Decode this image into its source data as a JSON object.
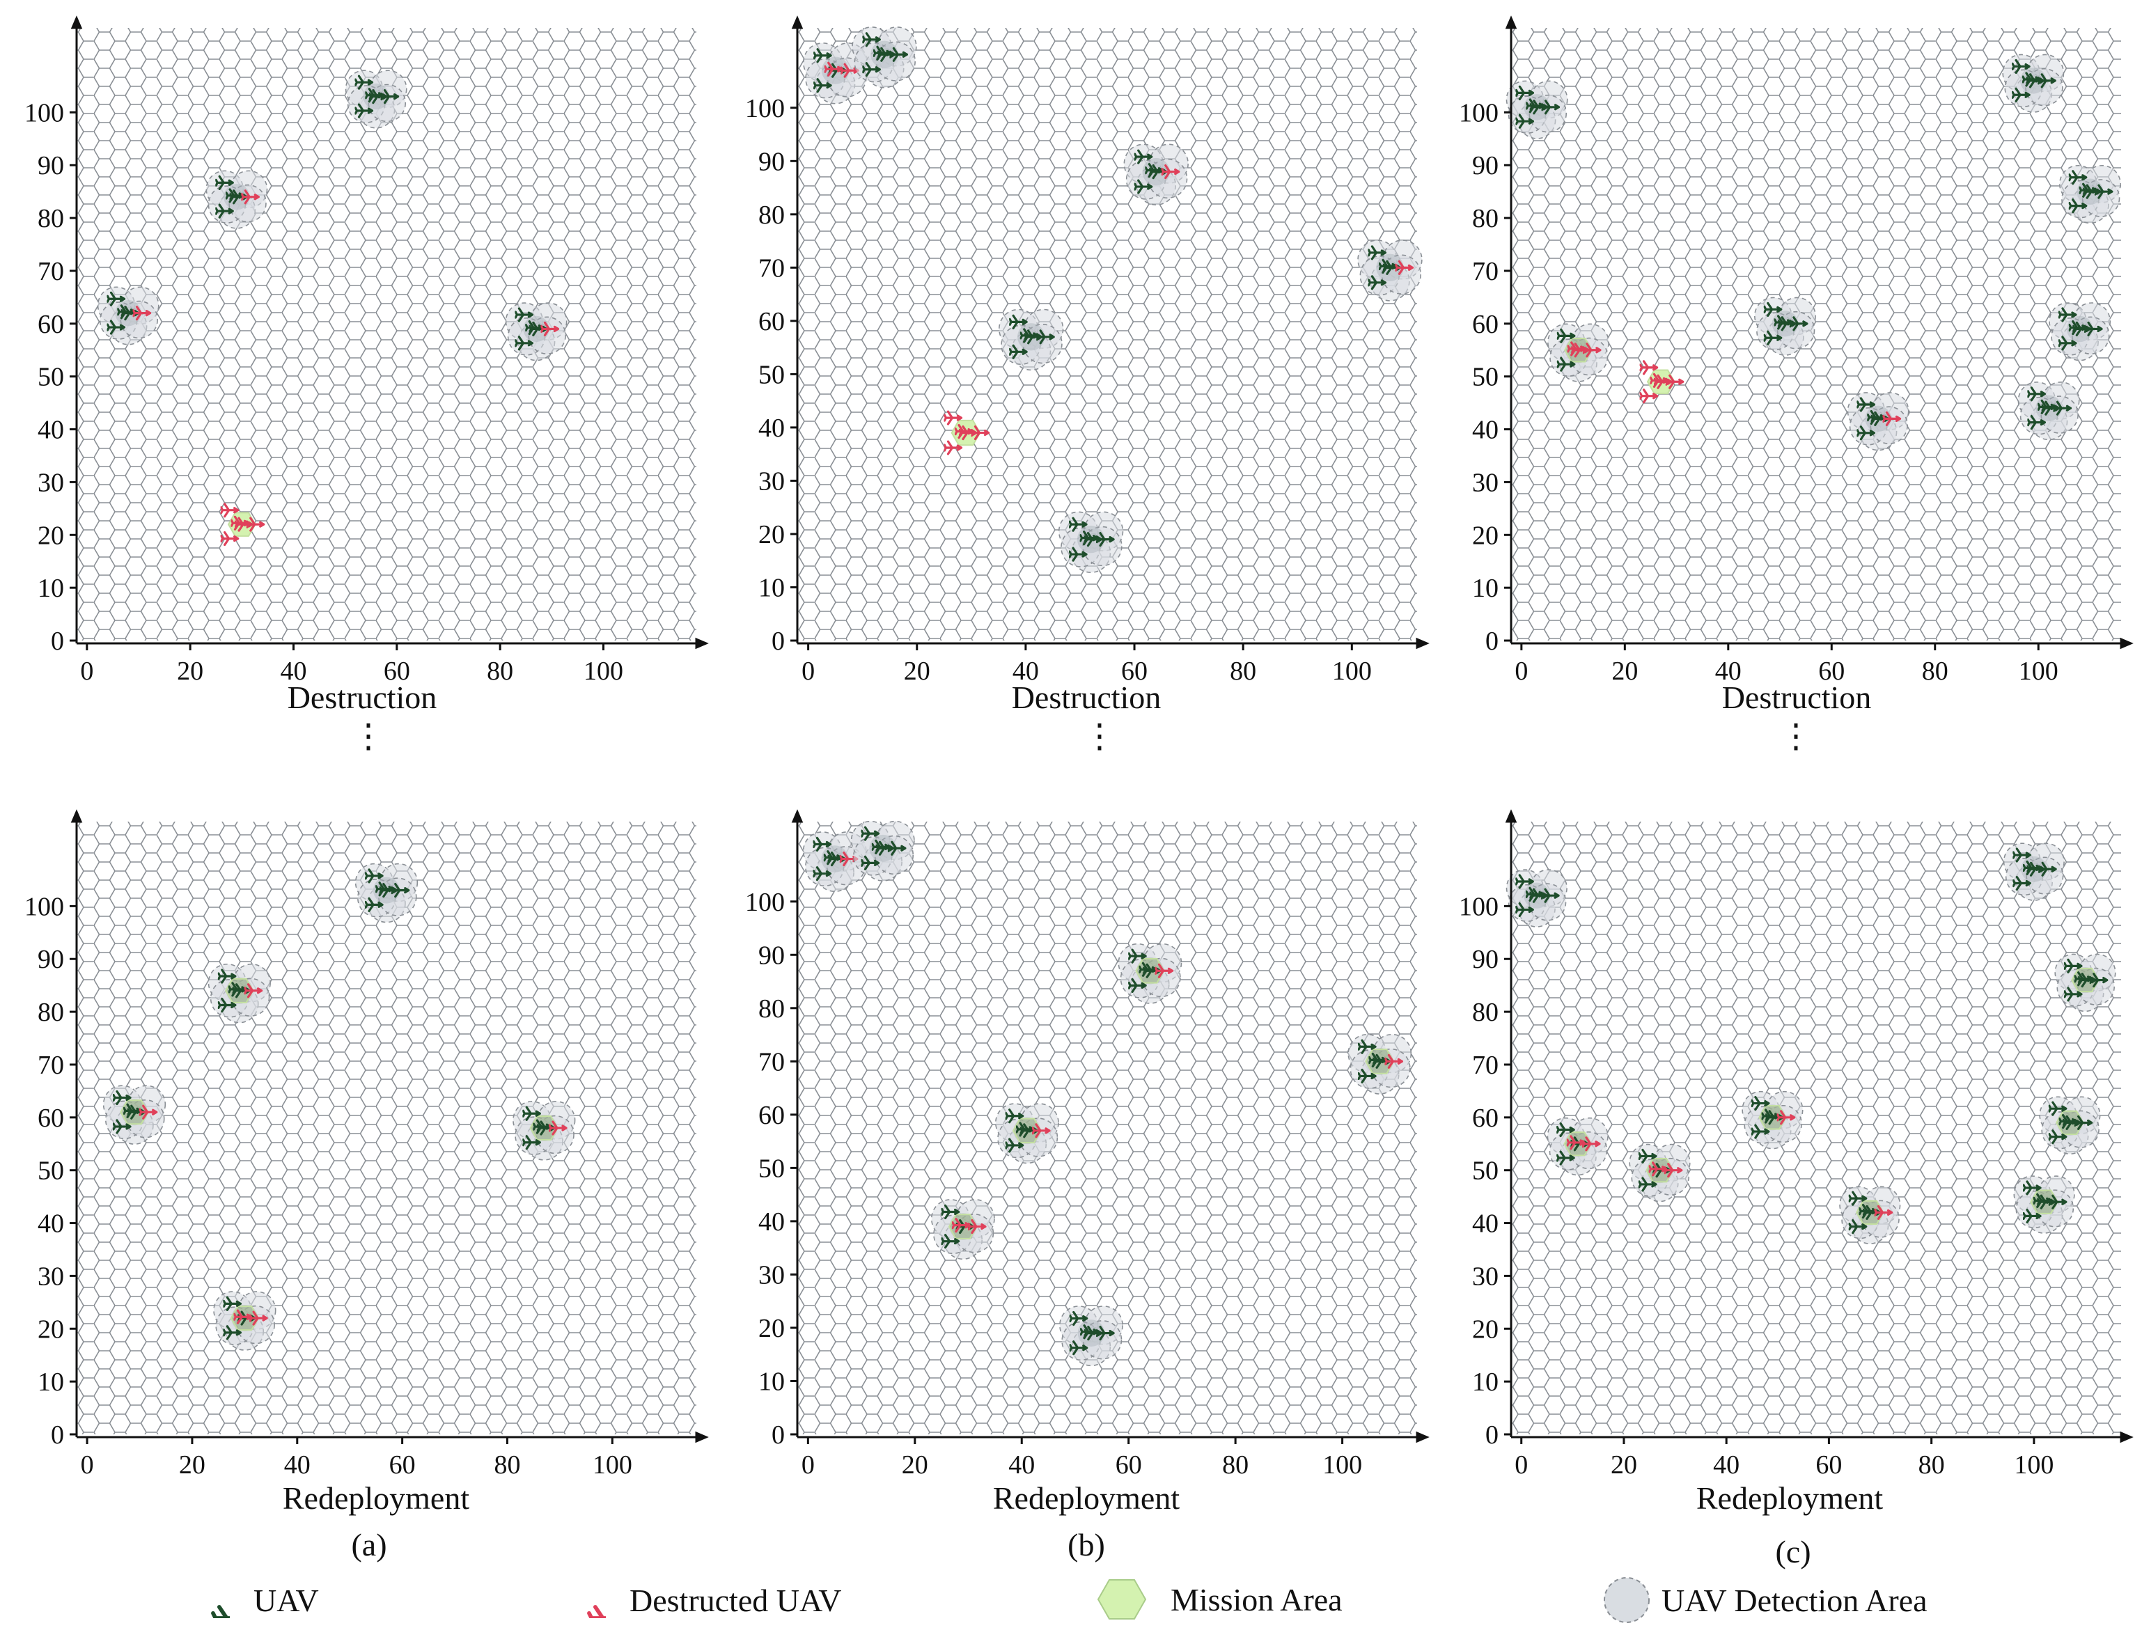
{
  "figure": {
    "captions": [
      "Destruction",
      "Redeployment"
    ],
    "column_labels": [
      "(a)",
      "(b)",
      "(c)"
    ],
    "ellipsis": "⋮"
  },
  "legend": [
    {
      "name": "uav",
      "label": "UAV",
      "icon": "uav-plane-icon",
      "color": "#1e4d2b"
    },
    {
      "name": "destructed-uav",
      "label": "Destructed UAV",
      "icon": "destructed-uav-plane-icon",
      "color": "#e0405a"
    },
    {
      "name": "mission-area",
      "label": "Mission Area",
      "icon": "hexagon-icon",
      "color": "#d4f2b0"
    },
    {
      "name": "detection-area",
      "label": "UAV Detection Area",
      "icon": "circle-icon",
      "color": "#d9dde2"
    }
  ],
  "chart_data": [
    {
      "type": "scatter",
      "panel": "a-destruction",
      "title": "Destruction",
      "xlabel": "",
      "ylabel": "",
      "xlim": [
        -2,
        118
      ],
      "ylim": [
        0,
        116
      ],
      "xticks": [
        "0",
        "20",
        "40",
        "60",
        "80",
        "100"
      ],
      "yticks": [
        "0",
        "10",
        "20",
        "30",
        "40",
        "50",
        "60",
        "70",
        "80",
        "90",
        "100"
      ],
      "clusters": [
        {
          "x": 56,
          "y": 103,
          "uav": 5,
          "destroyed": 0,
          "mission": false,
          "detection": true
        },
        {
          "x": 29,
          "y": 84,
          "uav": 4,
          "destroyed": 1,
          "mission": false,
          "detection": true
        },
        {
          "x": 8,
          "y": 62,
          "uav": 4,
          "destroyed": 1,
          "mission": false,
          "detection": true
        },
        {
          "x": 87,
          "y": 59,
          "uav": 4,
          "destroyed": 1,
          "mission": false,
          "detection": true
        },
        {
          "x": 30,
          "y": 22,
          "uav": 0,
          "destroyed": 5,
          "mission": true,
          "detection": false
        }
      ]
    },
    {
      "type": "scatter",
      "panel": "b-destruction",
      "title": "Destruction",
      "xlabel": "",
      "ylabel": "",
      "xlim": [
        -2,
        112
      ],
      "ylim": [
        0,
        115
      ],
      "xticks": [
        "0",
        "20",
        "40",
        "60",
        "80",
        "100"
      ],
      "yticks": [
        "0",
        "10",
        "20",
        "30",
        "40",
        "50",
        "60",
        "70",
        "80",
        "90",
        "100"
      ],
      "clusters": [
        {
          "x": 5,
          "y": 107,
          "uav": 3,
          "destroyed": 2,
          "mission": false,
          "detection": true
        },
        {
          "x": 14,
          "y": 110,
          "uav": 5,
          "destroyed": 0,
          "mission": false,
          "detection": true
        },
        {
          "x": 64,
          "y": 88,
          "uav": 4,
          "destroyed": 1,
          "mission": false,
          "detection": true
        },
        {
          "x": 107,
          "y": 70,
          "uav": 4,
          "destroyed": 1,
          "mission": false,
          "detection": true
        },
        {
          "x": 41,
          "y": 57,
          "uav": 5,
          "destroyed": 0,
          "mission": false,
          "detection": true
        },
        {
          "x": 29,
          "y": 39,
          "uav": 0,
          "destroyed": 5,
          "mission": true,
          "detection": false
        },
        {
          "x": 52,
          "y": 19,
          "uav": 5,
          "destroyed": 0,
          "mission": false,
          "detection": true
        }
      ]
    },
    {
      "type": "scatter",
      "panel": "c-destruction",
      "title": "Destruction",
      "xlabel": "",
      "ylabel": "",
      "xlim": [
        -2,
        116
      ],
      "ylim": [
        0,
        116
      ],
      "xticks": [
        "0",
        "20",
        "40",
        "60",
        "80",
        "100"
      ],
      "yticks": [
        "0",
        "10",
        "20",
        "30",
        "40",
        "50",
        "60",
        "70",
        "80",
        "90",
        "100"
      ],
      "clusters": [
        {
          "x": 3,
          "y": 101,
          "uav": 5,
          "destroyed": 0,
          "mission": false,
          "detection": true
        },
        {
          "x": 99,
          "y": 106,
          "uav": 5,
          "destroyed": 0,
          "mission": false,
          "detection": true
        },
        {
          "x": 110,
          "y": 85,
          "uav": 5,
          "destroyed": 0,
          "mission": false,
          "detection": true
        },
        {
          "x": 51,
          "y": 60,
          "uav": 5,
          "destroyed": 0,
          "mission": false,
          "detection": true
        },
        {
          "x": 108,
          "y": 59,
          "uav": 5,
          "destroyed": 0,
          "mission": false,
          "detection": true
        },
        {
          "x": 11,
          "y": 55,
          "uav": 2,
          "destroyed": 3,
          "mission": true,
          "detection": true
        },
        {
          "x": 27,
          "y": 49,
          "uav": 0,
          "destroyed": 5,
          "mission": true,
          "detection": false
        },
        {
          "x": 69,
          "y": 42,
          "uav": 4,
          "destroyed": 1,
          "mission": false,
          "detection": true
        },
        {
          "x": 102,
          "y": 44,
          "uav": 5,
          "destroyed": 0,
          "mission": false,
          "detection": true
        }
      ]
    },
    {
      "type": "scatter",
      "panel": "a-redeployment",
      "title": "Redeployment",
      "xlabel": "",
      "ylabel": "",
      "xlim": [
        -2,
        116
      ],
      "ylim": [
        0,
        116
      ],
      "xticks": [
        "0",
        "20",
        "40",
        "60",
        "80",
        "100"
      ],
      "yticks": [
        "0",
        "10",
        "20",
        "30",
        "40",
        "50",
        "60",
        "70",
        "80",
        "90",
        "100"
      ],
      "clusters": [
        {
          "x": 57,
          "y": 103,
          "uav": 5,
          "destroyed": 0,
          "mission": false,
          "detection": true
        },
        {
          "x": 29,
          "y": 84,
          "uav": 4,
          "destroyed": 1,
          "mission": true,
          "detection": true
        },
        {
          "x": 9,
          "y": 61,
          "uav": 4,
          "destroyed": 1,
          "mission": true,
          "detection": true
        },
        {
          "x": 87,
          "y": 58,
          "uav": 4,
          "destroyed": 1,
          "mission": true,
          "detection": true
        },
        {
          "x": 30,
          "y": 22,
          "uav": 3,
          "destroyed": 2,
          "mission": true,
          "detection": true
        }
      ]
    },
    {
      "type": "scatter",
      "panel": "b-redeployment",
      "title": "Redeployment",
      "xlabel": "",
      "ylabel": "",
      "xlim": [
        -2,
        114
      ],
      "ylim": [
        0,
        115
      ],
      "xticks": [
        "0",
        "20",
        "40",
        "60",
        "80",
        "100"
      ],
      "yticks": [
        "0",
        "10",
        "20",
        "30",
        "40",
        "50",
        "60",
        "70",
        "80",
        "90",
        "100"
      ],
      "clusters": [
        {
          "x": 5,
          "y": 108,
          "uav": 4,
          "destroyed": 1,
          "mission": false,
          "detection": true
        },
        {
          "x": 14,
          "y": 110,
          "uav": 5,
          "destroyed": 0,
          "mission": false,
          "detection": true
        },
        {
          "x": 64,
          "y": 87,
          "uav": 4,
          "destroyed": 1,
          "mission": true,
          "detection": true
        },
        {
          "x": 107,
          "y": 70,
          "uav": 4,
          "destroyed": 1,
          "mission": true,
          "detection": true
        },
        {
          "x": 41,
          "y": 57,
          "uav": 4,
          "destroyed": 1,
          "mission": true,
          "detection": true
        },
        {
          "x": 29,
          "y": 39,
          "uav": 3,
          "destroyed": 2,
          "mission": true,
          "detection": true
        },
        {
          "x": 53,
          "y": 19,
          "uav": 5,
          "destroyed": 0,
          "mission": false,
          "detection": true
        }
      ]
    },
    {
      "type": "scatter",
      "panel": "c-redeployment",
      "title": "Redeployment",
      "xlabel": "",
      "ylabel": "",
      "xlim": [
        -2,
        117
      ],
      "ylim": [
        0,
        116
      ],
      "xticks": [
        "0",
        "20",
        "40",
        "60",
        "80",
        "100"
      ],
      "yticks": [
        "0",
        "10",
        "20",
        "30",
        "40",
        "50",
        "60",
        "70",
        "80",
        "90",
        "100"
      ],
      "clusters": [
        {
          "x": 3,
          "y": 102,
          "uav": 5,
          "destroyed": 0,
          "mission": false,
          "detection": true
        },
        {
          "x": 100,
          "y": 107,
          "uav": 5,
          "destroyed": 0,
          "mission": false,
          "detection": true
        },
        {
          "x": 110,
          "y": 86,
          "uav": 5,
          "destroyed": 0,
          "mission": true,
          "detection": true
        },
        {
          "x": 49,
          "y": 60,
          "uav": 4,
          "destroyed": 1,
          "mission": true,
          "detection": true
        },
        {
          "x": 107,
          "y": 59,
          "uav": 5,
          "destroyed": 0,
          "mission": true,
          "detection": true
        },
        {
          "x": 11,
          "y": 55,
          "uav": 3,
          "destroyed": 2,
          "mission": true,
          "detection": true
        },
        {
          "x": 27,
          "y": 50,
          "uav": 3,
          "destroyed": 2,
          "mission": true,
          "detection": true
        },
        {
          "x": 68,
          "y": 42,
          "uav": 4,
          "destroyed": 1,
          "mission": true,
          "detection": true
        },
        {
          "x": 102,
          "y": 44,
          "uav": 5,
          "destroyed": 0,
          "mission": true,
          "detection": true
        }
      ]
    }
  ]
}
